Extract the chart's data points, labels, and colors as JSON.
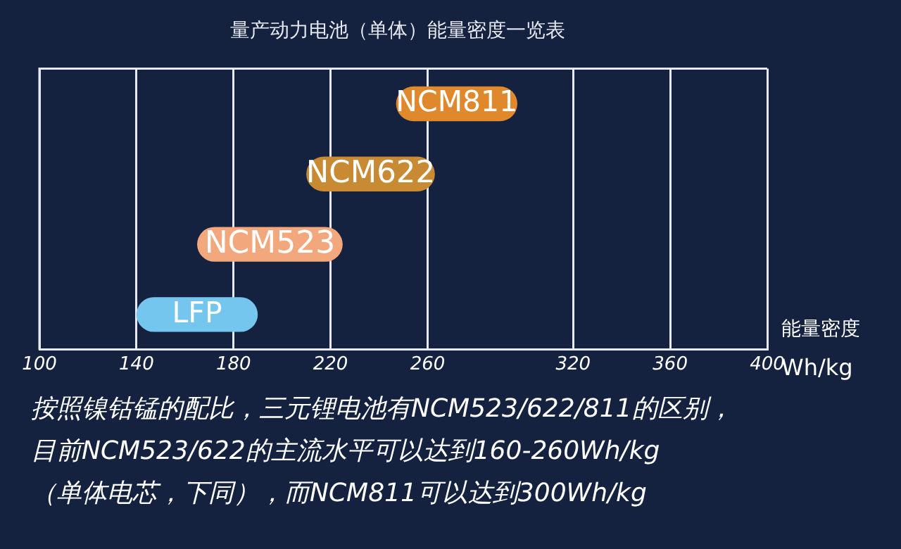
{
  "chart_data": {
    "type": "bar",
    "orientation": "horizontal",
    "title": "量产动力电池（单体）能量密度一览表",
    "xlabel": "能量密度 Wh/kg",
    "categories": [
      "NCM811",
      "NCM622",
      "NCM523",
      "LFP"
    ],
    "base": [
      247,
      210,
      165,
      140
    ],
    "values": [
      50,
      53,
      60,
      50
    ],
    "colors": [
      "#e0892c",
      "#c98a34",
      "#f3a77c",
      "#74c6ef"
    ],
    "xlim": [
      100,
      400
    ],
    "xticks": [
      100,
      140,
      180,
      220,
      260,
      320,
      360,
      400
    ],
    "grid": "x",
    "tick_labels": "x",
    "annotations": [
      "按照镍钴锰的配比，三元锂电池有NCM523/622/811的区别，",
      "目前NCM523/622的主流水平可以达到160-260Wh/kg",
      "（单体电芯，下同），而NCM811可以达到300Wh/kg"
    ]
  }
}
